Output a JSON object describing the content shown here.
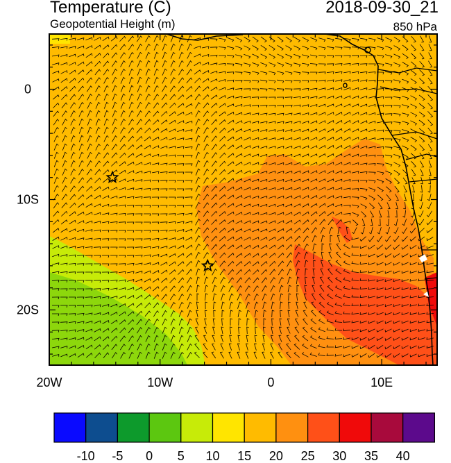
{
  "header": {
    "title": "Temperature (C)",
    "subtitle": "Geopotential Height (m)",
    "datetime": "2018-09-30_21",
    "level": "850 hPa"
  },
  "axes": {
    "x_ticks": [
      {
        "lon": -20,
        "label": "20W"
      },
      {
        "lon": -10,
        "label": "10W"
      },
      {
        "lon": 0,
        "label": "0"
      },
      {
        "lon": 10,
        "label": "10E"
      }
    ],
    "y_ticks": [
      {
        "lat": 0,
        "label": "0"
      },
      {
        "lat": -10,
        "label": "10S"
      },
      {
        "lat": -20,
        "label": "20S"
      }
    ],
    "lon_range": [
      -20,
      15
    ],
    "lat_range": [
      -25,
      5
    ]
  },
  "markers": [
    {
      "name": "star",
      "lon": -14.3,
      "lat": -8
    },
    {
      "name": "star",
      "lon": -5.7,
      "lat": -16
    }
  ],
  "colorbar": {
    "colors": [
      "#0a0aff",
      "#0d4d8f",
      "#0d9a2c",
      "#5cc710",
      "#c7eb08",
      "#ffe500",
      "#ffbb00",
      "#ff9010",
      "#ff5018",
      "#f00a0a",
      "#a80a3c",
      "#5c0a8c"
    ],
    "labels": [
      "-10",
      "-5",
      "0",
      "5",
      "10",
      "15",
      "20",
      "25",
      "30",
      "35",
      "40"
    ]
  },
  "legend_colors": {
    "t10": "#c7eb08",
    "t15": "#ffe500",
    "t20": "#ffbb00",
    "t25": "#ff9010",
    "t30": "#ff5018",
    "ocean_edge": "#5cc710"
  }
}
